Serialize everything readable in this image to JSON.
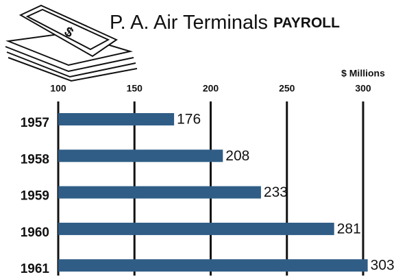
{
  "chart_data": {
    "type": "bar",
    "orientation": "horizontal",
    "title": "P. A. Air Terminals",
    "title_emphasis": "PAYROLL",
    "x_label": "$ Millions",
    "categories": [
      "1957",
      "1958",
      "1959",
      "1960",
      "1961"
    ],
    "values": [
      176,
      208,
      233,
      281,
      303
    ],
    "color": "#2f5d86",
    "xlim": [
      100,
      300
    ],
    "xticks": [
      100,
      150,
      200,
      250,
      300
    ],
    "grid": true
  }
}
